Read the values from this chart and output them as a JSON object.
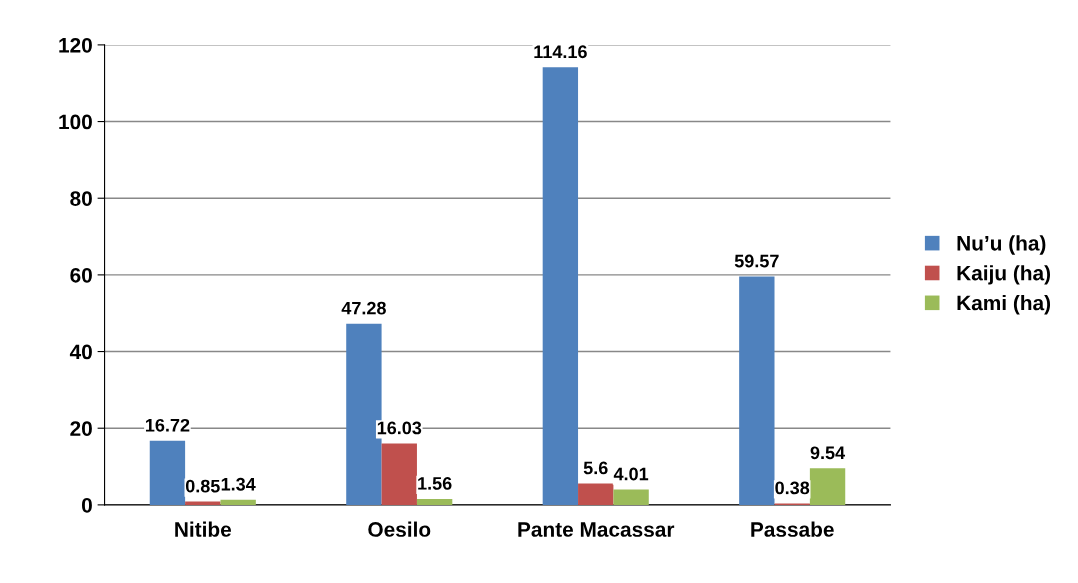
{
  "chart_data": {
    "type": "bar",
    "categories": [
      "Nitibe",
      "Oesilo",
      "Pante Macassar",
      "Passabe"
    ],
    "series": [
      {
        "name": "Nu’u (ha)",
        "color": "#4f81bd",
        "values": [
          16.72,
          47.28,
          114.16,
          59.57
        ]
      },
      {
        "name": "Kaiju (ha)",
        "color": "#c0504d",
        "values": [
          0.85,
          16.03,
          5.6,
          0.38
        ]
      },
      {
        "name": "Kami (ha)",
        "color": "#9bbb59",
        "values": [
          1.34,
          1.56,
          4.01,
          9.54
        ]
      }
    ],
    "ylim": [
      0,
      120
    ],
    "yticks": [
      0,
      20,
      40,
      60,
      80,
      100,
      120
    ],
    "grid": "y",
    "legend": "right",
    "data_labels": true
  }
}
